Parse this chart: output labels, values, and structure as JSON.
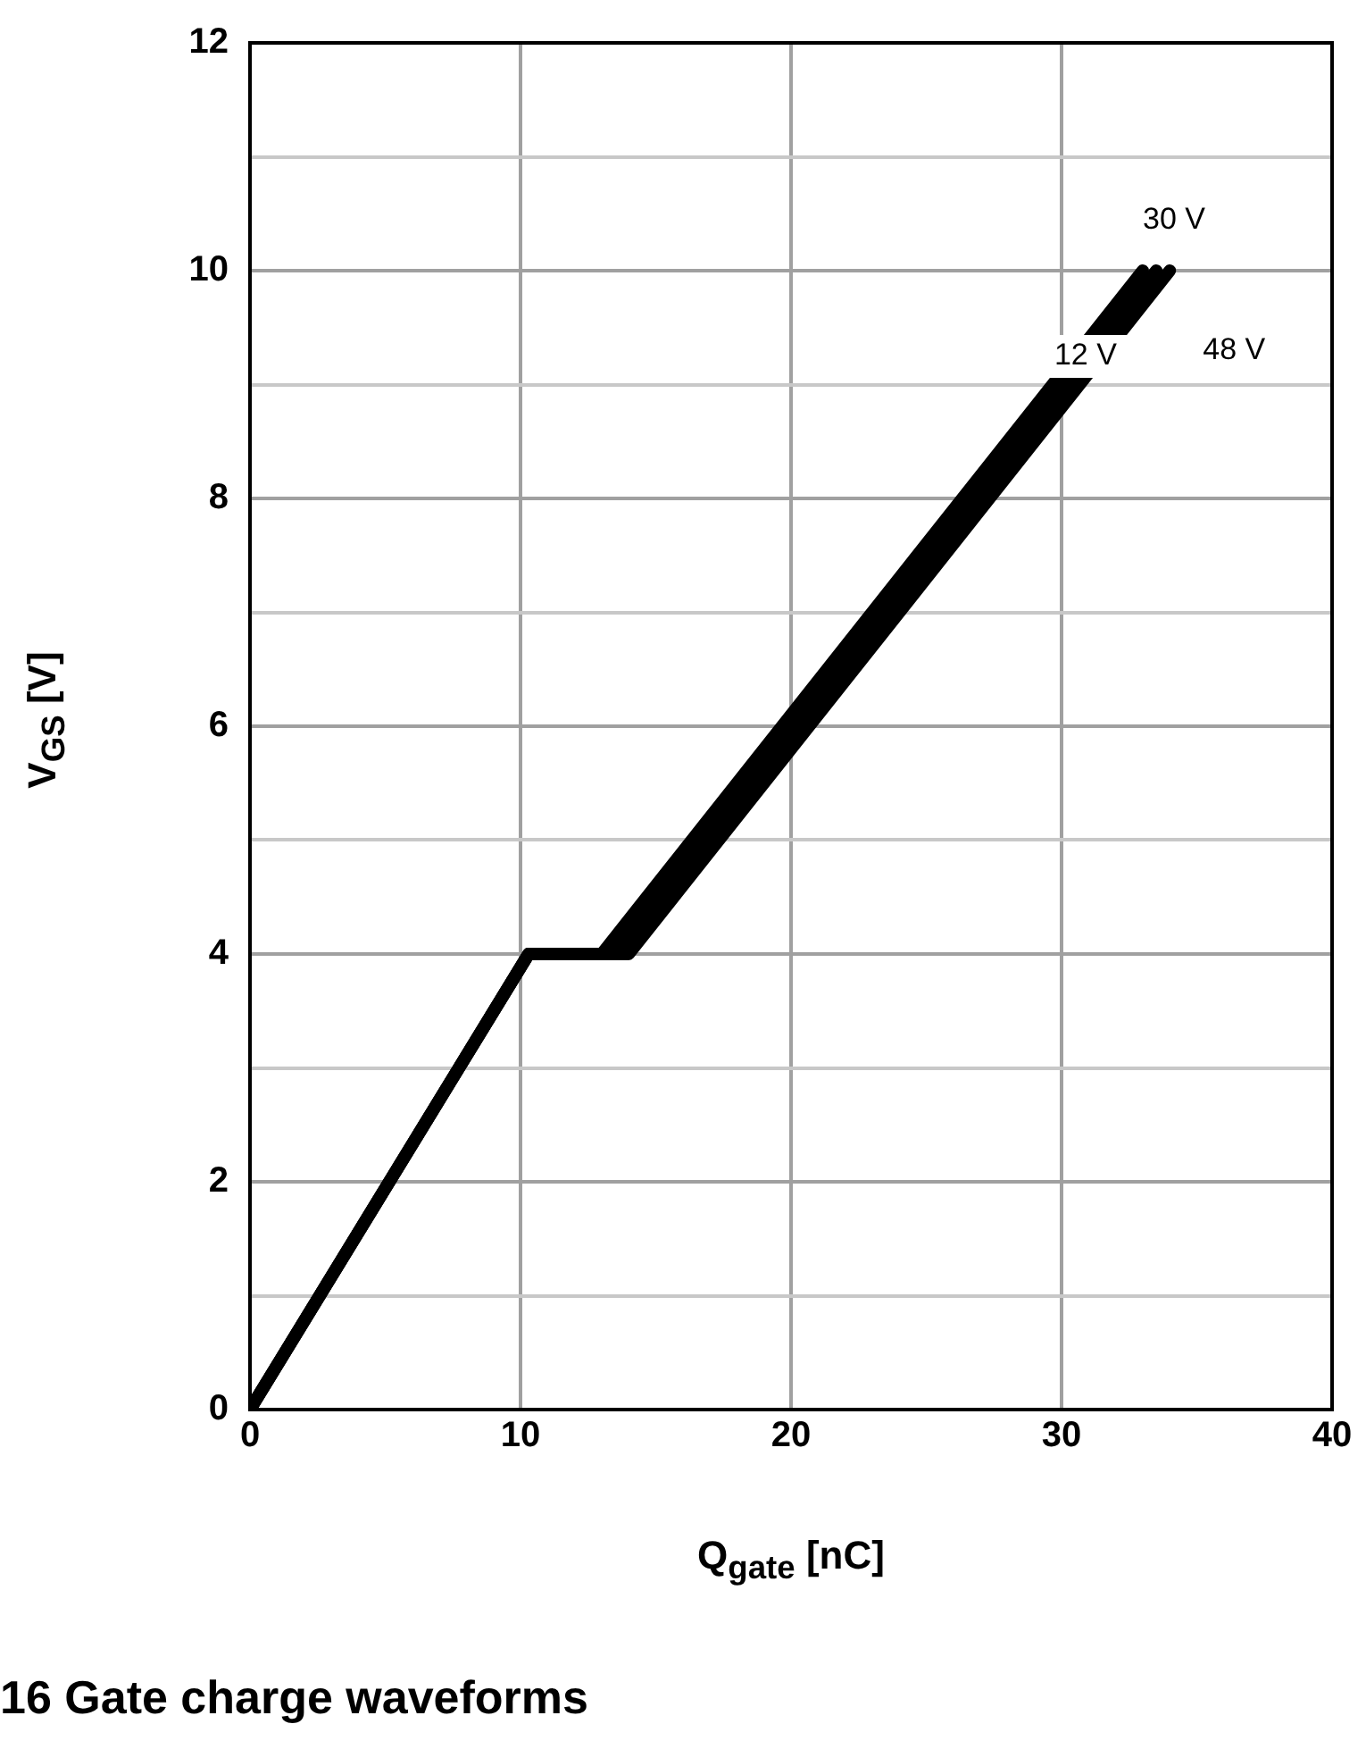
{
  "chart_data": {
    "type": "line",
    "title": "16 Gate charge waveforms",
    "xlabel": "Q$_{gate}$ [nC]",
    "ylabel": "V$_{GS}$ [V]",
    "xlim": [
      0,
      40
    ],
    "xticks": [
      0,
      10,
      20,
      30,
      40
    ],
    "ylim": [
      0,
      12
    ],
    "yticks": [
      0,
      {
        "value": 1,
        "label": null
      },
      2,
      {
        "value": 3,
        "label": null
      },
      4,
      {
        "value": 5,
        "label": null
      },
      6,
      {
        "value": 7,
        "label": null
      },
      8,
      {
        "value": 9,
        "label": null
      },
      10,
      {
        "value": 11,
        "label": null
      },
      12
    ],
    "grid": true,
    "legend": false,
    "marker": "none",
    "line_style": "solid",
    "series": [
      {
        "name": "12 V",
        "color": "#000000",
        "x": [
          0,
          10.3,
          13.0,
          33.0
        ],
        "values": [
          0,
          4,
          4,
          10
        ]
      },
      {
        "name": "30 V",
        "color": "#000000",
        "x": [
          0,
          10.3,
          13.5,
          33.5
        ],
        "values": [
          0,
          4,
          4,
          10
        ]
      },
      {
        "name": "48 V",
        "color": "#000000",
        "x": [
          0,
          10.3,
          14.0,
          34.0
        ],
        "values": [
          0,
          4,
          4,
          10
        ]
      }
    ]
  }
}
